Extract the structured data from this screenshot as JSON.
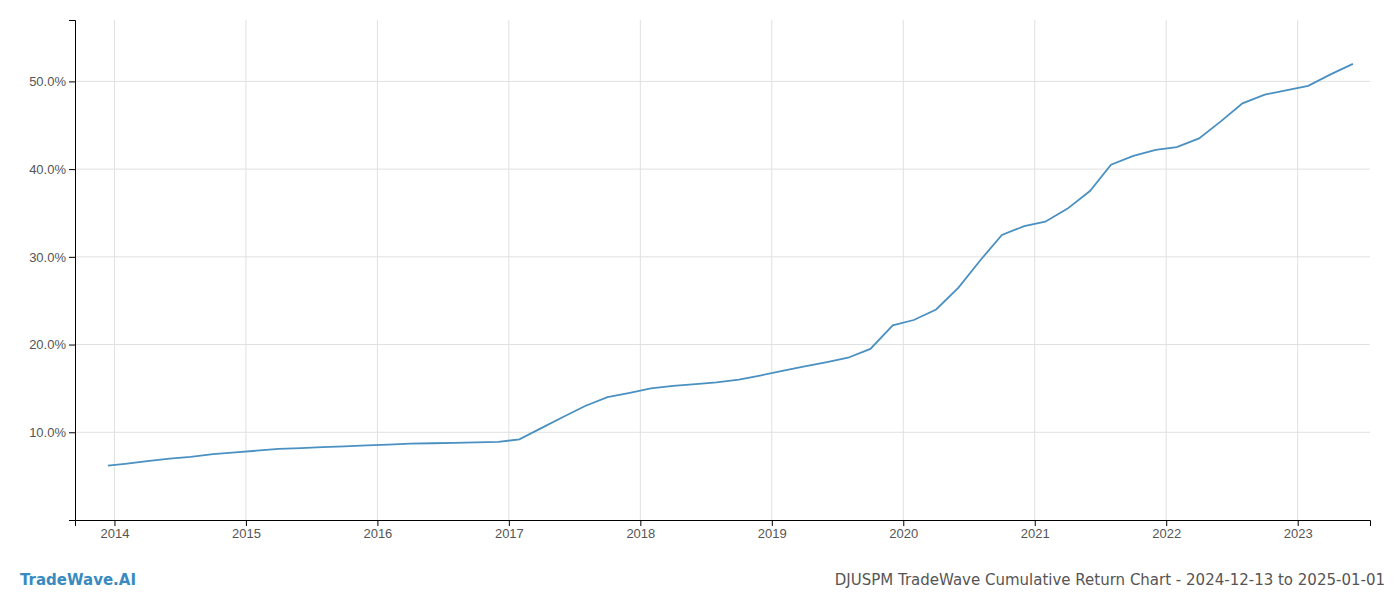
{
  "chart_data": {
    "type": "line",
    "title": "DJUSPM TradeWave Cumulative Return Chart - 2024-12-13 to 2025-01-01",
    "annotations": [
      "TradeWave.AI"
    ],
    "color": "#4a90c0",
    "x": [
      2013.95,
      2014.08,
      2014.25,
      2014.42,
      2014.58,
      2014.75,
      2014.92,
      2015.08,
      2015.25,
      2015.42,
      2015.58,
      2015.75,
      2015.92,
      2016.08,
      2016.25,
      2016.42,
      2016.58,
      2016.75,
      2016.92,
      2017.08,
      2017.25,
      2017.42,
      2017.58,
      2017.75,
      2017.92,
      2018.08,
      2018.25,
      2018.42,
      2018.58,
      2018.75,
      2018.92,
      2019.08,
      2019.25,
      2019.42,
      2019.58,
      2019.75,
      2019.92,
      2020.08,
      2020.25,
      2020.42,
      2020.58,
      2020.75,
      2020.92,
      2021.08,
      2021.25,
      2021.42,
      2021.58,
      2021.75,
      2021.92,
      2022.08,
      2022.25,
      2022.42,
      2022.58,
      2022.75,
      2022.92,
      2023.08,
      2023.25,
      2023.42
    ],
    "values": [
      6.2,
      6.4,
      6.7,
      7.0,
      7.2,
      7.5,
      7.7,
      7.9,
      8.1,
      8.2,
      8.3,
      8.4,
      8.5,
      8.6,
      8.7,
      8.75,
      8.8,
      8.85,
      8.9,
      9.2,
      10.5,
      11.8,
      13.0,
      14.0,
      14.5,
      15.0,
      15.3,
      15.5,
      15.7,
      16.0,
      16.5,
      17.0,
      17.5,
      18.0,
      18.5,
      19.5,
      22.2,
      22.8,
      24.0,
      26.5,
      29.5,
      32.5,
      33.5,
      34.0,
      35.5,
      37.5,
      40.5,
      41.5,
      42.2,
      42.5,
      43.5,
      45.5,
      47.5,
      48.5,
      49.0,
      49.5,
      50.8,
      52.0
    ],
    "xlim": [
      2013.7,
      2023.55
    ],
    "xticks": [
      2014,
      2015,
      2016,
      2017,
      2018,
      2019,
      2020,
      2021,
      2022,
      2023
    ],
    "ylim": [
      0,
      57
    ],
    "yticks": [
      {
        "value": 10.0,
        "label": "10.0%"
      },
      {
        "value": 20.0,
        "label": "20.0%"
      },
      {
        "value": 30.0,
        "label": "30.0%"
      },
      {
        "value": 40.0,
        "label": "40.0%"
      },
      {
        "value": 50.0,
        "label": "50.0%"
      }
    ],
    "grid": true
  }
}
